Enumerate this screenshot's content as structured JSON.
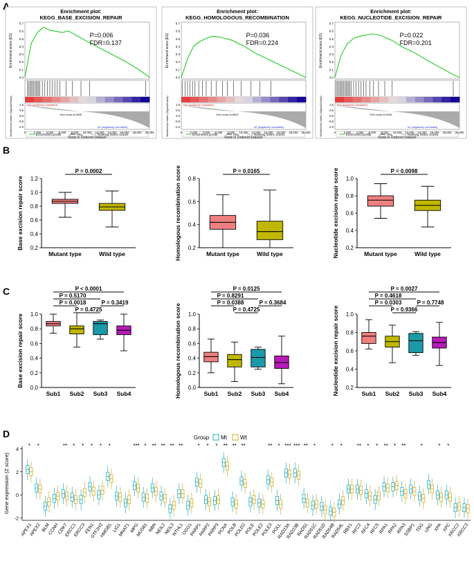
{
  "panel_labels": [
    "A",
    "B",
    "C",
    "D"
  ],
  "gsea": [
    {
      "title_line1": "Enrichment plot:",
      "title_line2": "KEGG_BASE_EXCISION_REPAIR",
      "p": "P=0.006",
      "fdr": "FDR=0.137",
      "zero_cross": "Zero cross at 8435",
      "hits": [
        0.02,
        0.03,
        0.04,
        0.05,
        0.06,
        0.07,
        0.08,
        0.09,
        0.1,
        0.11,
        0.12,
        0.14,
        0.16,
        0.18,
        0.2,
        0.22,
        0.24,
        0.26,
        0.28,
        0.33,
        0.38,
        0.45,
        0.52,
        0.97
      ],
      "es": [
        [
          0,
          0
        ],
        [
          0.05,
          0.45
        ],
        [
          0.1,
          0.6
        ],
        [
          0.15,
          0.67
        ],
        [
          0.2,
          0.63
        ],
        [
          0.3,
          0.6
        ],
        [
          0.35,
          0.62
        ],
        [
          0.5,
          0.48
        ],
        [
          0.65,
          0.35
        ],
        [
          0.8,
          0.22
        ],
        [
          0.9,
          0.12
        ],
        [
          0.96,
          0.05
        ],
        [
          0.98,
          0.03
        ],
        [
          1,
          0
        ]
      ]
    },
    {
      "title_line1": "Enrichment plot:",
      "title_line2": "KEGG_HOMOLOGOUS_RECOMBINATION",
      "p": "P=0.036",
      "fdr": "FDR=0.224",
      "zero_cross": "Zero cross at 8623",
      "hits": [
        0.01,
        0.03,
        0.05,
        0.07,
        0.09,
        0.11,
        0.14,
        0.17,
        0.2,
        0.24,
        0.28,
        0.33,
        0.37,
        0.42,
        0.48,
        0.56,
        0.63,
        0.72
      ],
      "es": [
        [
          0,
          0
        ],
        [
          0.05,
          0.25
        ],
        [
          0.1,
          0.42
        ],
        [
          0.15,
          0.48
        ],
        [
          0.2,
          0.52
        ],
        [
          0.25,
          0.55
        ],
        [
          0.3,
          0.54
        ],
        [
          0.4,
          0.5
        ],
        [
          0.5,
          0.42
        ],
        [
          0.6,
          0.32
        ],
        [
          0.7,
          0.24
        ],
        [
          0.8,
          0.16
        ],
        [
          0.9,
          0.08
        ],
        [
          1,
          0
        ]
      ]
    },
    {
      "title_line1": "Enrichment plot:",
      "title_line2": "KEGG_NUCLEOTIDE_EXCISION_REPAIR",
      "p": "P=0.022",
      "fdr": "FDR=0.201",
      "zero_cross": "Zero cross at 8435",
      "hits": [
        0.01,
        0.02,
        0.03,
        0.04,
        0.05,
        0.06,
        0.07,
        0.08,
        0.09,
        0.1,
        0.11,
        0.12,
        0.13,
        0.15,
        0.17,
        0.19,
        0.21,
        0.23,
        0.25,
        0.28,
        0.31,
        0.35,
        0.4,
        0.46,
        0.95
      ],
      "es": [
        [
          0,
          0
        ],
        [
          0.05,
          0.3
        ],
        [
          0.1,
          0.45
        ],
        [
          0.15,
          0.52
        ],
        [
          0.2,
          0.55
        ],
        [
          0.3,
          0.58
        ],
        [
          0.35,
          0.57
        ],
        [
          0.45,
          0.5
        ],
        [
          0.55,
          0.4
        ],
        [
          0.65,
          0.32
        ],
        [
          0.75,
          0.22
        ],
        [
          0.85,
          0.13
        ],
        [
          0.95,
          0.04
        ],
        [
          1,
          0
        ]
      ]
    }
  ],
  "gsea_common": {
    "ylabel": "Enrichment score (ES)",
    "ylabel2": "Ranked list metric (Signal2Noise)",
    "xlabel": "Rank in Ordered Dataset",
    "pos_label": "'mut' (positively correlated)",
    "neg_label": "'wt' (negatively correlated)",
    "legend": [
      "Enrichment profile",
      "Hits",
      "Ranking metric scores"
    ],
    "xticks": [
      "0",
      "2,000",
      "4,000",
      "6,000",
      "8,000",
      "10,000",
      "12,000",
      "14,000",
      "16,000",
      "18,000",
      "20,000"
    ],
    "es_ticks": [
      "0.0",
      "0.1",
      "0.2",
      "0.3",
      "0.4",
      "0.5",
      "0.6",
      "0.7"
    ],
    "metric_ticks": [
      "1.0",
      "0.5",
      "0.0",
      "-0.5",
      "-1.0"
    ]
  },
  "colors": {
    "mutant": "#f08080",
    "wildtype": "#c0b800",
    "sub3": "#1a9aa8",
    "sub4": "#b81ab8",
    "mt": "#1ab0c8",
    "wt": "#d8a820",
    "es_line": "#22cc22"
  },
  "chart_data": [
    {
      "type": "boxplot",
      "panel": "B",
      "ylabel": "Base excision repair score",
      "categories": [
        "Mutant type",
        "Wild type"
      ],
      "ylim": [
        0.2,
        1.2
      ],
      "yticks": [
        "0.2",
        "0.4",
        "0.6",
        "0.8",
        "1.0",
        "1.2"
      ],
      "boxes": [
        {
          "min": 0.64,
          "q1": 0.84,
          "median": 0.87,
          "q3": 0.9,
          "max": 1.0
        },
        {
          "min": 0.5,
          "q1": 0.74,
          "median": 0.79,
          "q3": 0.84,
          "max": 1.02
        }
      ],
      "comparisons": [
        {
          "label": "P = 0.0002",
          "a": 0,
          "b": 1
        }
      ]
    },
    {
      "type": "boxplot",
      "panel": "B",
      "ylabel": "Homologous recombination score",
      "categories": [
        "Mutant type",
        "Wild type"
      ],
      "ylim": [
        0.2,
        0.8
      ],
      "yticks": [
        "0.2",
        "0.4",
        "0.6",
        "0.8"
      ],
      "boxes": [
        {
          "min": 0.2,
          "q1": 0.36,
          "median": 0.42,
          "q3": 0.48,
          "max": 0.66
        },
        {
          "min": 0.2,
          "q1": 0.27,
          "median": 0.34,
          "q3": 0.43,
          "max": 0.7
        }
      ],
      "comparisons": [
        {
          "label": "P = 0.0165",
          "a": 0,
          "b": 1
        }
      ]
    },
    {
      "type": "boxplot",
      "panel": "B",
      "ylabel": "Nucleotide excision repair score",
      "categories": [
        "Mutant type",
        "Wild type"
      ],
      "ylim": [
        0.2,
        1.0
      ],
      "yticks": [
        "0.2",
        "0.4",
        "0.6",
        "0.8",
        "1.0"
      ],
      "boxes": [
        {
          "min": 0.54,
          "q1": 0.68,
          "median": 0.75,
          "q3": 0.8,
          "max": 0.94
        },
        {
          "min": 0.44,
          "q1": 0.63,
          "median": 0.69,
          "q3": 0.75,
          "max": 0.91
        }
      ],
      "comparisons": [
        {
          "label": "P = 0.0098",
          "a": 0,
          "b": 1
        }
      ]
    },
    {
      "type": "boxplot",
      "panel": "C",
      "ylabel": "Base excision repair score",
      "categories": [
        "Sub1",
        "Sub2",
        "Sub3",
        "Sub4"
      ],
      "ylim": [
        0.0,
        1.0
      ],
      "yticks": [
        "0.0",
        "0.2",
        "0.4",
        "0.6",
        "0.8",
        "1.0"
      ],
      "boxes": [
        {
          "min": 0.74,
          "q1": 0.84,
          "median": 0.87,
          "q3": 0.9,
          "max": 1.0
        },
        {
          "min": 0.55,
          "q1": 0.73,
          "median": 0.8,
          "q3": 0.84,
          "max": 1.02
        },
        {
          "min": 0.66,
          "q1": 0.72,
          "median": 0.87,
          "q3": 0.9,
          "max": 0.92
        },
        {
          "min": 0.5,
          "q1": 0.72,
          "median": 0.78,
          "q3": 0.84,
          "max": 1.0
        }
      ],
      "comparisons": [
        {
          "label": "P < 0.0001",
          "a": 0,
          "b": 3,
          "level": 4
        },
        {
          "label": "P = 0.5170",
          "a": 0,
          "b": 2,
          "level": 3
        },
        {
          "label": "P = 0.0018",
          "a": 0,
          "b": 1,
          "level": 2
        },
        {
          "label": "P = 0.3419",
          "a": 2,
          "b": 3,
          "level": 2
        },
        {
          "label": "P = 0.4725",
          "a": 1,
          "b": 2,
          "level": 1
        }
      ]
    },
    {
      "type": "boxplot",
      "panel": "C",
      "ylabel": "Homologous recombination score",
      "categories": [
        "Sub1",
        "Sub2",
        "Sub3",
        "Sub4"
      ],
      "ylim": [
        0.0,
        1.0
      ],
      "yticks": [
        "0.0",
        "0.2",
        "0.4",
        "0.6",
        "0.8",
        "1.0"
      ],
      "boxes": [
        {
          "min": 0.2,
          "q1": 0.35,
          "median": 0.42,
          "q3": 0.48,
          "max": 0.66
        },
        {
          "min": 0.08,
          "q1": 0.28,
          "median": 0.38,
          "q3": 0.45,
          "max": 0.62
        },
        {
          "min": 0.25,
          "q1": 0.28,
          "median": 0.41,
          "q3": 0.52,
          "max": 0.55
        },
        {
          "min": 0.05,
          "q1": 0.26,
          "median": 0.34,
          "q3": 0.43,
          "max": 0.7
        }
      ],
      "comparisons": [
        {
          "label": "P = 0.0125",
          "a": 0,
          "b": 3,
          "level": 4
        },
        {
          "label": "P = 0.8291",
          "a": 0,
          "b": 2,
          "level": 3
        },
        {
          "label": "P = 0.0388",
          "a": 0,
          "b": 1,
          "level": 2
        },
        {
          "label": "P = 0.3684",
          "a": 2,
          "b": 3,
          "level": 2
        },
        {
          "label": "P = 0.4725",
          "a": 1,
          "b": 2,
          "level": 1
        }
      ]
    },
    {
      "type": "boxplot",
      "panel": "C",
      "ylabel": "Nucleotide excision repair score",
      "categories": [
        "Sub1",
        "Sub2",
        "Sub3",
        "Sub4"
      ],
      "ylim": [
        0.2,
        1.0
      ],
      "yticks": [
        "0.2",
        "0.4",
        "0.6",
        "0.8",
        "1.0"
      ],
      "boxes": [
        {
          "min": 0.62,
          "q1": 0.68,
          "median": 0.76,
          "q3": 0.8,
          "max": 0.94
        },
        {
          "min": 0.47,
          "q1": 0.64,
          "median": 0.7,
          "q3": 0.76,
          "max": 0.88
        },
        {
          "min": 0.55,
          "q1": 0.58,
          "median": 0.71,
          "q3": 0.79,
          "max": 0.81
        },
        {
          "min": 0.44,
          "q1": 0.63,
          "median": 0.69,
          "q3": 0.75,
          "max": 0.91
        }
      ],
      "comparisons": [
        {
          "label": "P = 0.0027",
          "a": 0,
          "b": 3,
          "level": 4
        },
        {
          "label": "P = 0.4618",
          "a": 0,
          "b": 2,
          "level": 3
        },
        {
          "label": "P = 0.0303",
          "a": 0,
          "b": 1,
          "level": 2
        },
        {
          "label": "P = 0.7748",
          "a": 2,
          "b": 3,
          "level": 2
        },
        {
          "label": "P = 0.9366",
          "a": 1,
          "b": 2,
          "level": 1
        }
      ]
    },
    {
      "type": "grouped_boxplot",
      "panel": "D",
      "ylabel": "Gene expression (Z score)",
      "legend_title": "Group",
      "legend": [
        "Mt",
        "Wt"
      ],
      "ylim": [
        -2.2,
        4.2
      ],
      "yticks": [
        "-2",
        "0",
        "2",
        "4"
      ],
      "genes": [
        "APEX1",
        "APEX2",
        "BLM",
        "CCNH",
        "CDK7",
        "ERCC1",
        "ERCC3",
        "FEN1",
        "GTF2H3",
        "HMGB1",
        "LIG1",
        "MNAT1",
        "MPG",
        "MUS81",
        "NBN",
        "NEIL2",
        "NEIL3",
        "NTHL1",
        "OGG1",
        "PARP1",
        "PARP2",
        "PARP3",
        "PCNA",
        "POLB",
        "POLD2",
        "POLE",
        "POLE2",
        "POLE3",
        "POLL",
        "RAD23A",
        "RAD23B",
        "RAD51",
        "RAD51C",
        "RAD51D",
        "RAD54B",
        "RAD54L",
        "RBX1",
        "RFC2",
        "RFC4",
        "RFC5",
        "RPA1",
        "RPA2",
        "RPA3",
        "SSBP1",
        "TDG",
        "UNG",
        "XPA",
        "XPC",
        "XRCC2",
        "XRCC3"
      ],
      "mt_median": [
        2.2,
        0.6,
        -1.0,
        -0.3,
        0.1,
        -0.2,
        -0.4,
        0.7,
        0.0,
        1.6,
        -0.1,
        -0.7,
        0.8,
        -0.2,
        0.6,
        -0.1,
        -1.2,
        0.1,
        -0.9,
        1.1,
        -0.4,
        -0.5,
        2.8,
        -0.6,
        1.2,
        -0.6,
        -0.7,
        1.3,
        -0.5,
        1.9,
        1.9,
        -0.3,
        -0.9,
        -1.0,
        -1.4,
        -0.8,
        0.5,
        0.5,
        0.1,
        -0.4,
        0.7,
        0.7,
        0.3,
        0.5,
        -0.1,
        0.9,
        0.0,
        0.0,
        -1.1,
        -1.1
      ],
      "wt_median": [
        2.0,
        0.5,
        -0.6,
        -0.1,
        -0.1,
        -0.4,
        0.2,
        0.3,
        0.4,
        1.4,
        -0.2,
        -0.4,
        0.6,
        -0.3,
        0.3,
        -0.3,
        -0.9,
        0.1,
        -0.7,
        1.0,
        -0.6,
        -0.4,
        2.5,
        -0.8,
        1.0,
        -0.4,
        -0.8,
        1.1,
        -0.8,
        1.8,
        1.7,
        -0.7,
        -0.8,
        -1.3,
        -1.5,
        -0.5,
        0.5,
        0.4,
        -0.1,
        -0.1,
        0.6,
        0.8,
        0.1,
        0.3,
        -0.3,
        0.5,
        -0.2,
        -0.2,
        -1.0,
        -1.2
      ],
      "significance": [
        "*",
        "*",
        "",
        "",
        "**",
        "*",
        "*",
        "*",
        "*",
        "*",
        "",
        "",
        "***",
        "*",
        "**",
        "**",
        "**",
        "**",
        "",
        "*",
        "*",
        "*",
        "**",
        "**",
        "**",
        "",
        "",
        "**",
        "*",
        "***",
        "***",
        "**",
        "*",
        "",
        "*",
        "*",
        "",
        "**",
        "*",
        "*",
        "**",
        "*",
        "**",
        "",
        "*",
        "",
        "*",
        "*",
        "",
        ""
      ]
    }
  ]
}
